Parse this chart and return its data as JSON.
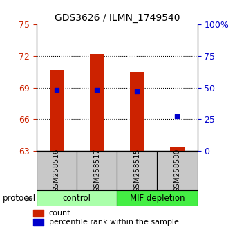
{
  "title": "GDS3626 / ILMN_1749540",
  "samples": [
    "GSM258516",
    "GSM258517",
    "GSM258515",
    "GSM258530"
  ],
  "bar_bottom": 63,
  "bar_tops": [
    70.7,
    72.2,
    70.5,
    63.3
  ],
  "percentile_ranks": [
    48,
    48,
    47,
    27
  ],
  "ylim_left": [
    63,
    75
  ],
  "ylim_right": [
    0,
    100
  ],
  "yticks_left": [
    63,
    66,
    69,
    72,
    75
  ],
  "yticks_right": [
    0,
    25,
    50,
    75,
    100
  ],
  "ytick_labels_right": [
    "0",
    "25",
    "50",
    "75",
    "100%"
  ],
  "bar_color": "#CC2200",
  "dot_color": "#0000CC",
  "bg_color": "#FFFFFF",
  "plot_bg": "#FFFFFF",
  "label_color_left": "#CC2200",
  "label_color_right": "#0000CC",
  "protocol_label": "protocol",
  "legend_count": "count",
  "legend_percentile": "percentile rank within the sample",
  "sample_box_color": "#C8C8C8",
  "control_color": "#AAFFAA",
  "mif_color": "#44EE44",
  "bar_width": 0.35,
  "grid_yticks": [
    66,
    69,
    72
  ]
}
